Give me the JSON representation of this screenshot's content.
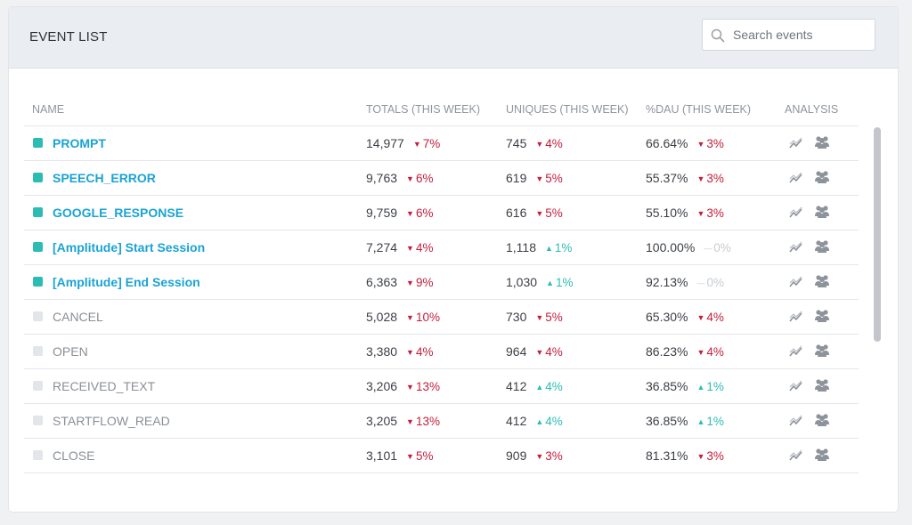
{
  "header": {
    "title": "EVENT LIST",
    "search_placeholder": "Search events"
  },
  "columns": {
    "name": "NAME",
    "totals": "TOTALS (THIS WEEK)",
    "uniques": "UNIQUES (THIS WEEK)",
    "dau": "%DAU (THIS WEEK)",
    "analysis": "ANALYSIS"
  },
  "colors": {
    "active_square": "#2bbdb3",
    "inactive_square": "#e2e5e9",
    "down": "#c41e3a",
    "up": "#2bbdb3",
    "flat": "#c8ccd1"
  },
  "rows": [
    {
      "name": "PROMPT",
      "active": true,
      "totals": "14,977",
      "totals_chg": "7%",
      "totals_dir": "down",
      "uniques": "745",
      "uniques_chg": "4%",
      "uniques_dir": "down",
      "dau": "66.64%",
      "dau_chg": "3%",
      "dau_dir": "down"
    },
    {
      "name": "SPEECH_ERROR",
      "active": true,
      "totals": "9,763",
      "totals_chg": "6%",
      "totals_dir": "down",
      "uniques": "619",
      "uniques_chg": "5%",
      "uniques_dir": "down",
      "dau": "55.37%",
      "dau_chg": "3%",
      "dau_dir": "down"
    },
    {
      "name": "GOOGLE_RESPONSE",
      "active": true,
      "totals": "9,759",
      "totals_chg": "6%",
      "totals_dir": "down",
      "uniques": "616",
      "uniques_chg": "5%",
      "uniques_dir": "down",
      "dau": "55.10%",
      "dau_chg": "3%",
      "dau_dir": "down"
    },
    {
      "name": "[Amplitude] Start Session",
      "active": true,
      "totals": "7,274",
      "totals_chg": "4%",
      "totals_dir": "down",
      "uniques": "1,118",
      "uniques_chg": "1%",
      "uniques_dir": "up",
      "dau": "100.00%",
      "dau_chg": "0%",
      "dau_dir": "flat"
    },
    {
      "name": "[Amplitude] End Session",
      "active": true,
      "totals": "6,363",
      "totals_chg": "9%",
      "totals_dir": "down",
      "uniques": "1,030",
      "uniques_chg": "1%",
      "uniques_dir": "up",
      "dau": "92.13%",
      "dau_chg": "0%",
      "dau_dir": "flat"
    },
    {
      "name": "CANCEL",
      "active": false,
      "totals": "5,028",
      "totals_chg": "10%",
      "totals_dir": "down",
      "uniques": "730",
      "uniques_chg": "5%",
      "uniques_dir": "down",
      "dau": "65.30%",
      "dau_chg": "4%",
      "dau_dir": "down"
    },
    {
      "name": "OPEN",
      "active": false,
      "totals": "3,380",
      "totals_chg": "4%",
      "totals_dir": "down",
      "uniques": "964",
      "uniques_chg": "4%",
      "uniques_dir": "down",
      "dau": "86.23%",
      "dau_chg": "4%",
      "dau_dir": "down"
    },
    {
      "name": "RECEIVED_TEXT",
      "active": false,
      "totals": "3,206",
      "totals_chg": "13%",
      "totals_dir": "down",
      "uniques": "412",
      "uniques_chg": "4%",
      "uniques_dir": "up",
      "dau": "36.85%",
      "dau_chg": "1%",
      "dau_dir": "up"
    },
    {
      "name": "STARTFLOW_READ",
      "active": false,
      "totals": "3,205",
      "totals_chg": "13%",
      "totals_dir": "down",
      "uniques": "412",
      "uniques_chg": "4%",
      "uniques_dir": "up",
      "dau": "36.85%",
      "dau_chg": "1%",
      "dau_dir": "up"
    },
    {
      "name": "CLOSE",
      "active": false,
      "totals": "3,101",
      "totals_chg": "5%",
      "totals_dir": "down",
      "uniques": "909",
      "uniques_chg": "3%",
      "uniques_dir": "down",
      "dau": "81.31%",
      "dau_chg": "3%",
      "dau_dir": "down"
    }
  ]
}
